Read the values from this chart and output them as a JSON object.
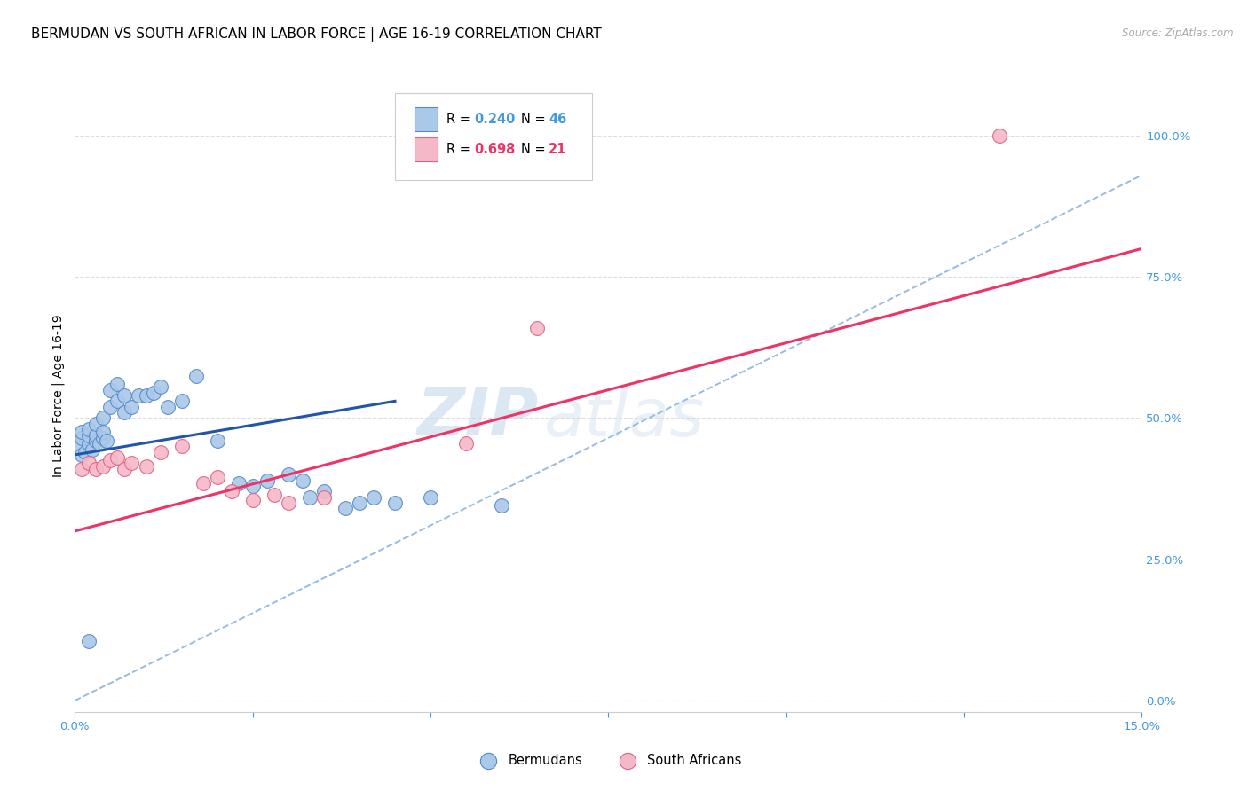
{
  "title": "BERMUDAN VS SOUTH AFRICAN IN LABOR FORCE | AGE 16-19 CORRELATION CHART",
  "source": "Source: ZipAtlas.com",
  "ylabel": "In Labor Force | Age 16-19",
  "xlim": [
    0.0,
    0.15
  ],
  "ylim": [
    -0.02,
    1.1
  ],
  "bermudans_color": "#aac8e8",
  "bermudans_edge": "#5588cc",
  "south_africans_color": "#f5b8c8",
  "south_africans_edge": "#e06080",
  "regression_blue": "#2255aa",
  "regression_pink": "#ee3366",
  "dashed_color": "#99bbdd",
  "R_bermudans": "0.240",
  "N_bermudans": "46",
  "R_south_africans": "0.698",
  "N_south_africans": "21",
  "bermudans_x": [
    0.0005,
    0.001,
    0.001,
    0.001,
    0.0015,
    0.002,
    0.002,
    0.002,
    0.0025,
    0.003,
    0.003,
    0.003,
    0.0035,
    0.004,
    0.004,
    0.004,
    0.0045,
    0.005,
    0.005,
    0.006,
    0.006,
    0.007,
    0.007,
    0.008,
    0.009,
    0.01,
    0.011,
    0.012,
    0.013,
    0.015,
    0.017,
    0.02,
    0.023,
    0.025,
    0.027,
    0.03,
    0.032,
    0.033,
    0.035,
    0.038,
    0.04,
    0.042,
    0.045,
    0.05,
    0.06,
    0.002
  ],
  "bermudans_y": [
    0.455,
    0.435,
    0.465,
    0.475,
    0.44,
    0.455,
    0.47,
    0.48,
    0.445,
    0.46,
    0.47,
    0.49,
    0.455,
    0.465,
    0.475,
    0.5,
    0.46,
    0.55,
    0.52,
    0.56,
    0.53,
    0.54,
    0.51,
    0.52,
    0.54,
    0.54,
    0.545,
    0.555,
    0.52,
    0.53,
    0.575,
    0.46,
    0.385,
    0.38,
    0.39,
    0.4,
    0.39,
    0.36,
    0.37,
    0.34,
    0.35,
    0.36,
    0.35,
    0.36,
    0.345,
    0.105
  ],
  "south_africans_x": [
    0.001,
    0.002,
    0.003,
    0.004,
    0.005,
    0.006,
    0.007,
    0.008,
    0.01,
    0.012,
    0.015,
    0.018,
    0.02,
    0.022,
    0.025,
    0.028,
    0.03,
    0.035,
    0.055,
    0.065,
    0.13
  ],
  "south_africans_y": [
    0.41,
    0.42,
    0.41,
    0.415,
    0.425,
    0.43,
    0.41,
    0.42,
    0.415,
    0.44,
    0.45,
    0.385,
    0.395,
    0.37,
    0.355,
    0.365,
    0.35,
    0.36,
    0.455,
    0.66,
    1.0
  ],
  "watermark_zip": "ZIP",
  "watermark_atlas": "atlas",
  "background_color": "#ffffff",
  "grid_color": "#dddddd",
  "tick_color": "#4499dd",
  "title_fontsize": 11,
  "tick_fontsize": 9.5,
  "ylabel_fontsize": 10
}
